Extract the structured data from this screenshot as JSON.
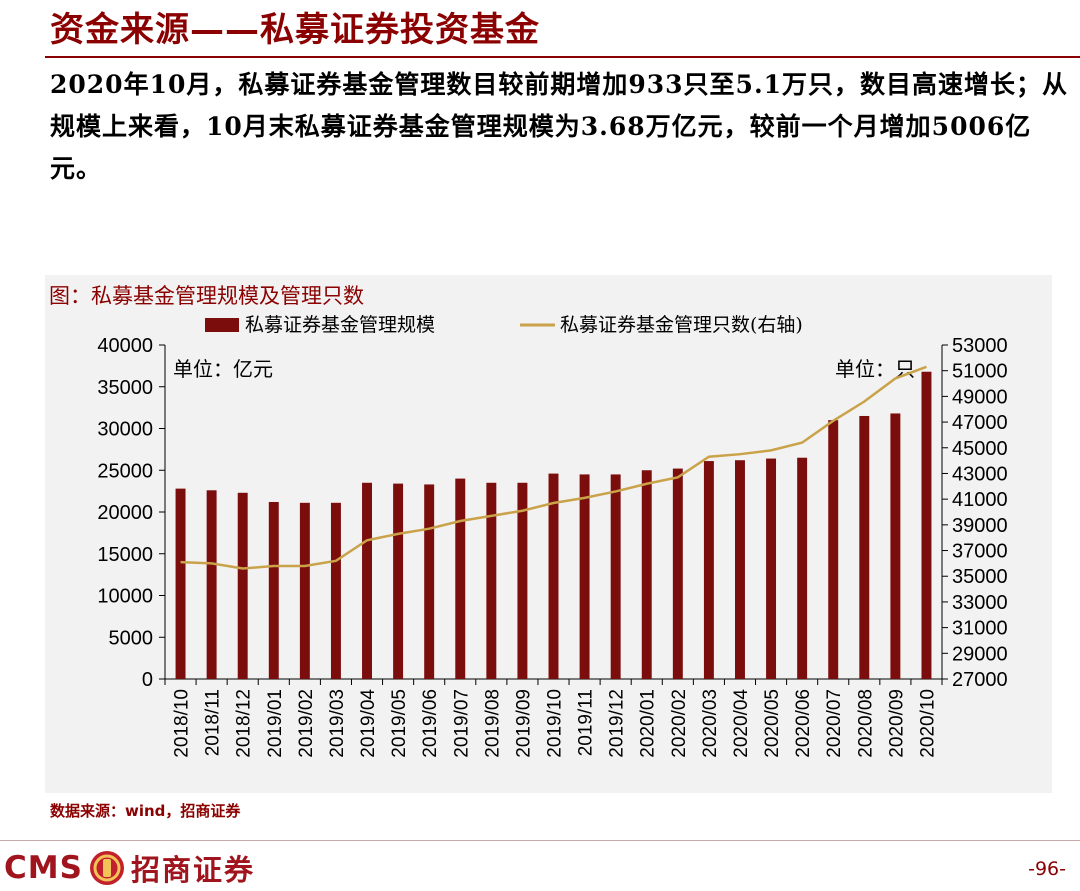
{
  "page": {
    "title": "资金来源——私募证券投资基金",
    "summary": "2020年10月，私募证券基金管理数目较前期增加933只至5.1万只，数目高速增长；从规模上来看，10月末私募证券基金管理规模为3.68万亿元，较前一个月增加5006亿元。",
    "source": "数据来源：wind，招商证券",
    "logo_latin": "CMS",
    "logo_cn": "招商证券",
    "page_number": "-96-"
  },
  "colors": {
    "bar": "#7b0d0d",
    "line": "#c9a24a",
    "accent": "#8b0000",
    "panel": "#f2f2f2"
  },
  "chart_data": {
    "type": "bar+line",
    "title": "图：私募基金管理规模及管理只数",
    "unit_left": "单位：亿元",
    "unit_right": "单位：只",
    "categories": [
      "2018/10",
      "2018/11",
      "2018/12",
      "2019/01",
      "2019/02",
      "2019/03",
      "2019/04",
      "2019/05",
      "2019/06",
      "2019/07",
      "2019/08",
      "2019/09",
      "2019/10",
      "2019/11",
      "2019/12",
      "2020/01",
      "2020/02",
      "2020/03",
      "2020/04",
      "2020/05",
      "2020/06",
      "2020/07",
      "2020/08",
      "2020/09",
      "2020/10"
    ],
    "series": [
      {
        "name": "私募证券基金管理规模",
        "type": "bar",
        "axis": "left",
        "values": [
          22800,
          22600,
          22300,
          21200,
          21100,
          21100,
          23500,
          23400,
          23300,
          24000,
          23500,
          23500,
          24600,
          24500,
          24500,
          25000,
          25200,
          26100,
          26200,
          26400,
          26500,
          31000,
          31500,
          31800,
          36800
        ]
      },
      {
        "name": "私募证券基金管理只数(右轴)",
        "type": "line",
        "axis": "right",
        "values": [
          36100,
          36000,
          35600,
          35800,
          35800,
          36200,
          37800,
          38300,
          38700,
          39300,
          39700,
          40100,
          40700,
          41100,
          41600,
          42200,
          42700,
          44300,
          44500,
          44800,
          45400,
          47100,
          48600,
          50400,
          51300
        ]
      }
    ],
    "ylim_left": [
      0,
      40000
    ],
    "yticks_left": [
      0,
      5000,
      10000,
      15000,
      20000,
      25000,
      30000,
      35000,
      40000
    ],
    "ylim_right": [
      27000,
      53000
    ],
    "yticks_right": [
      27000,
      29000,
      31000,
      33000,
      35000,
      37000,
      39000,
      41000,
      43000,
      45000,
      47000,
      49000,
      51000,
      53000
    ],
    "legend": "top"
  }
}
